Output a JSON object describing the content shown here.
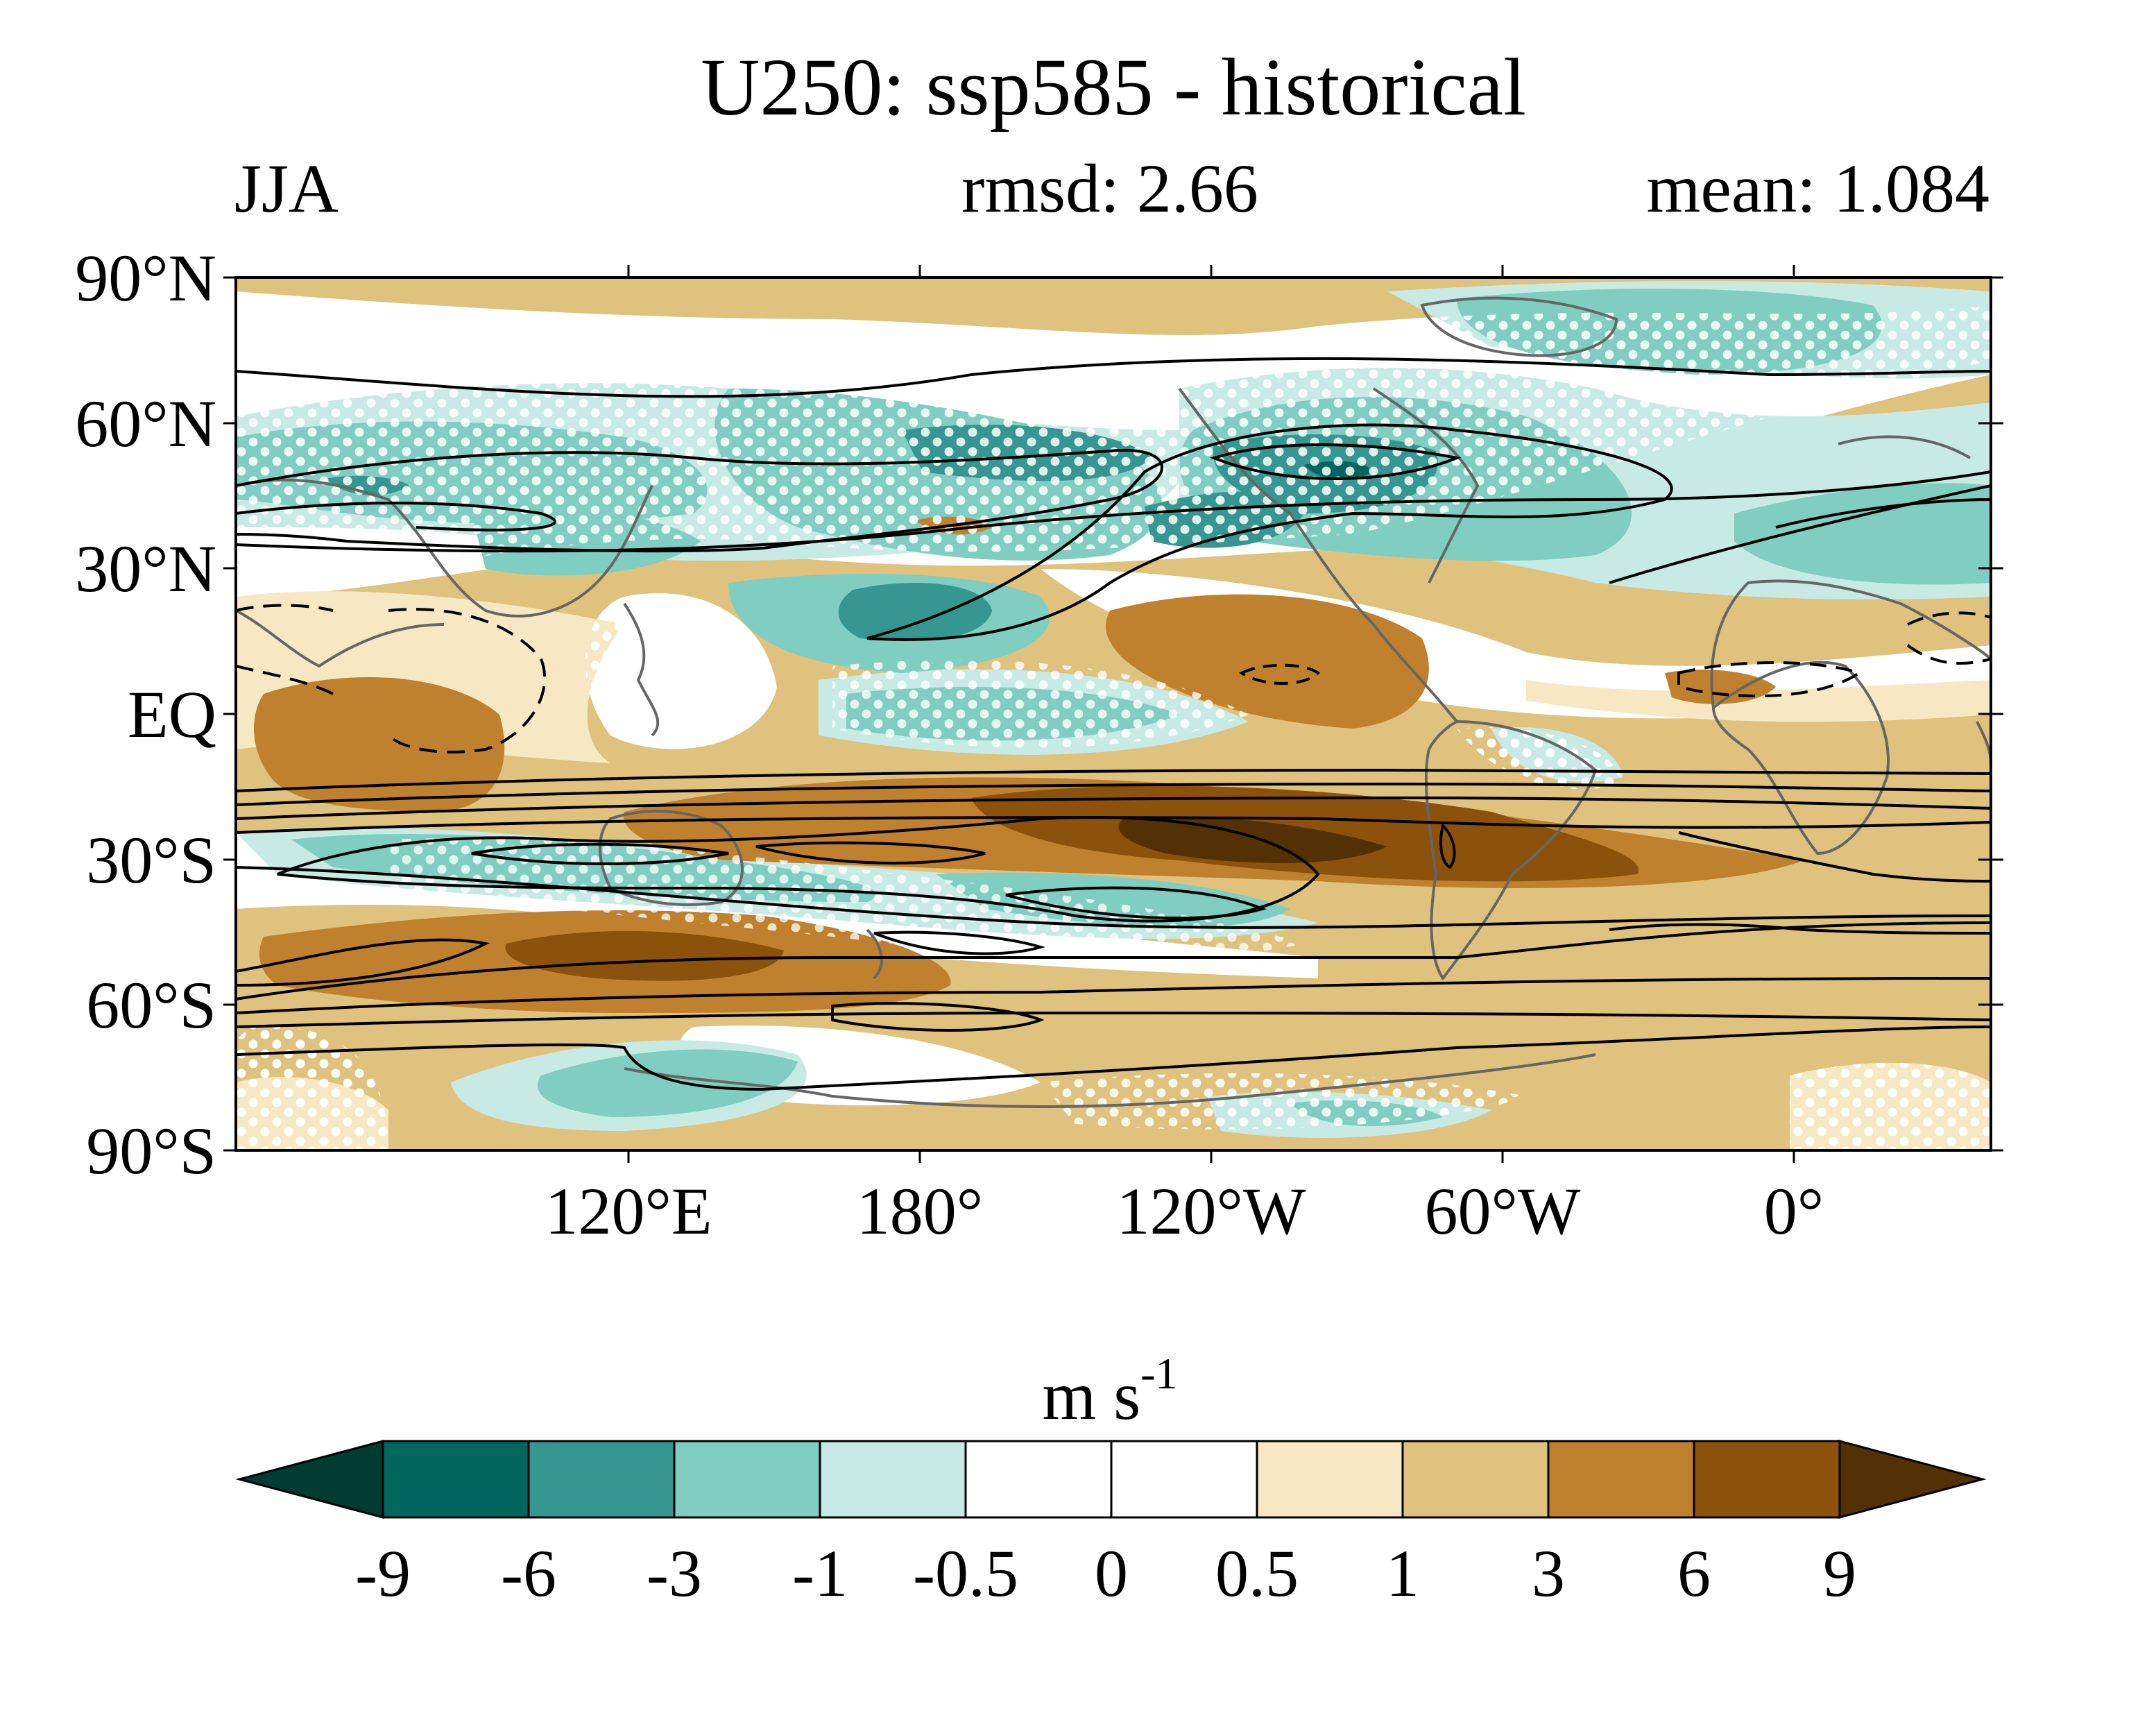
{
  "title": "U250: ssp585 - historical",
  "subtitle": {
    "left": "JJA",
    "center": "rmsd: 2.66",
    "right": "mean: 1.084"
  },
  "map": {
    "lat_ticks": [
      "90°N",
      "60°N",
      "30°N",
      "EQ",
      "30°S",
      "60°S",
      "90°S"
    ],
    "lon_ticks": [
      "120°E",
      "180°",
      "120°W",
      "60°W",
      "0°"
    ],
    "shading": "u250_difference_ssp585_minus_historical",
    "contours": "historical_u250_climatology",
    "stippling": "significance_dots"
  },
  "colorbar": {
    "unit_base": "m s",
    "unit_exp": "-1",
    "tick_labels": [
      "-9",
      "-6",
      "-3",
      "-1",
      "-0.5",
      "0",
      "0.5",
      "1",
      "3",
      "6",
      "9"
    ],
    "colors": [
      "#01665e",
      "#35978f",
      "#80cdc1",
      "#c7eae5",
      "#ffffff",
      "#ffffff",
      "#f6e8c3",
      "#dfc27d",
      "#bf812d",
      "#8c510a"
    ],
    "under_color": "#003c30",
    "over_color": "#543005"
  },
  "palette": {
    "teal_dark": "#01665e",
    "teal_mid": "#35978f",
    "teal_light": "#80cdc1",
    "teal_pale": "#c7eae5",
    "tan_pale": "#f6e8c3",
    "tan": "#dfc27d",
    "brown": "#bf812d",
    "brown_dark": "#8c510a",
    "brown_deep": "#543005",
    "coast": "#666666"
  }
}
